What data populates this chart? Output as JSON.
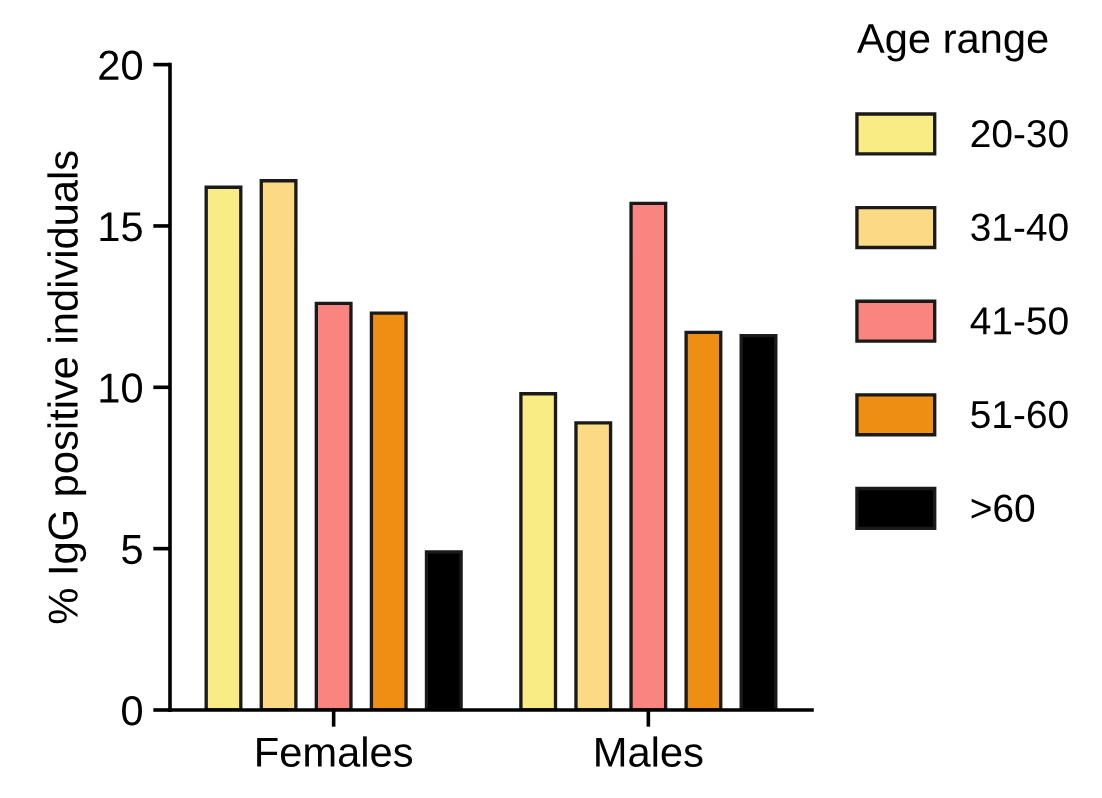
{
  "chart_data": {
    "type": "bar",
    "ylabel": "% IgG positive individuals",
    "legend_title": "Age range",
    "categories": [
      "Females",
      "Males"
    ],
    "series": [
      {
        "name": "20-30",
        "color": "#f9ec84",
        "values": [
          16.2,
          9.8
        ]
      },
      {
        "name": "31-40",
        "color": "#fbd985",
        "values": [
          16.4,
          8.9
        ]
      },
      {
        "name": "41-50",
        "color": "#fa8580",
        "values": [
          12.6,
          15.7
        ]
      },
      {
        "name": "51-60",
        "color": "#ee8e12",
        "values": [
          12.3,
          11.7
        ]
      },
      {
        "name": ">60",
        "color": "#000000",
        "values": [
          4.9,
          11.6
        ]
      }
    ],
    "ylim": [
      0,
      20
    ],
    "yticks": [
      0,
      5,
      10,
      15,
      20
    ],
    "grid": false,
    "legend": "right"
  }
}
